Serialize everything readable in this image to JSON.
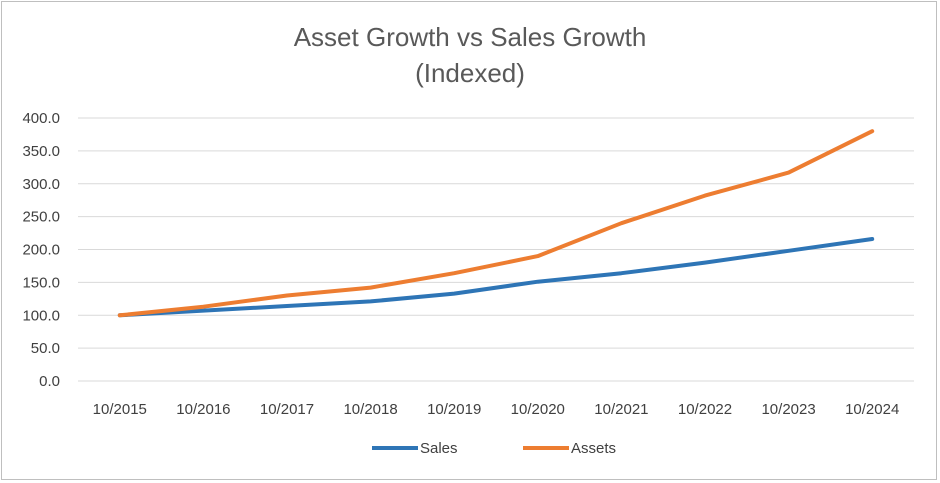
{
  "chart_data": {
    "type": "line",
    "title": "Asset Growth vs Sales Growth",
    "subtitle": "(Indexed)",
    "xlabel": "",
    "ylabel": "",
    "categories": [
      "10/2015",
      "10/2016",
      "10/2017",
      "10/2018",
      "10/2019",
      "10/2020",
      "10/2021",
      "10/2022",
      "10/2023",
      "10/2024"
    ],
    "y_ticks": [
      "0.0",
      "50.0",
      "100.0",
      "150.0",
      "200.0",
      "250.0",
      "300.0",
      "350.0",
      "400.0"
    ],
    "ylim": [
      0,
      400
    ],
    "grid": true,
    "legend_position": "bottom",
    "series": [
      {
        "name": "Sales",
        "color": "#2e75b6",
        "values": [
          100,
          107,
          114,
          121,
          133,
          151,
          164,
          180,
          198,
          216
        ]
      },
      {
        "name": "Assets",
        "color": "#ed7d31",
        "values": [
          100,
          113,
          130,
          142,
          164,
          190,
          240,
          282,
          317,
          380
        ]
      }
    ]
  }
}
